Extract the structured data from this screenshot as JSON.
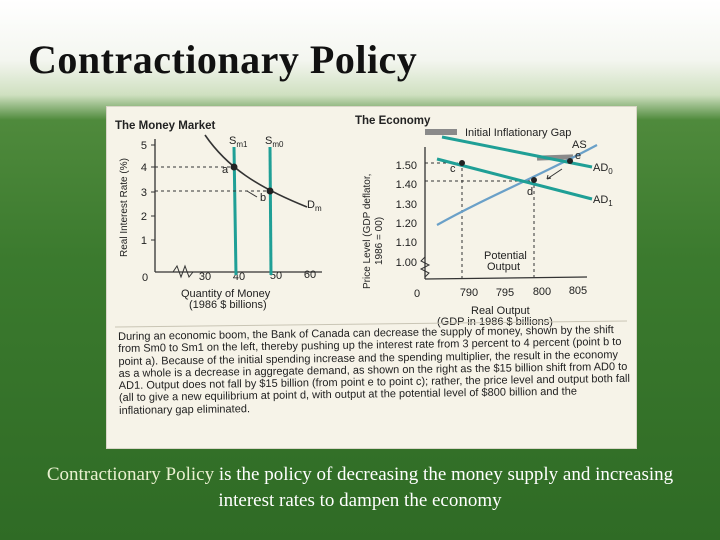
{
  "slide": {
    "title": "Contractionary Policy"
  },
  "colors": {
    "curve_green": "#1f9f96",
    "curve_dark": "#333333",
    "curve_blue": "#6aa0c8",
    "gap": "#8a8a8a"
  },
  "money_market": {
    "title": "The Money Market",
    "y_axis_label": "Real Interest Rate (%)",
    "y_ticks": [
      "5",
      "4",
      "3",
      "2",
      "1"
    ],
    "x_ticks": [
      "0",
      "30",
      "40",
      "50",
      "60"
    ],
    "x_axis_label_1": "Quantity of Money",
    "x_axis_label_2": "(1986 $ billions)",
    "supply_new": "S",
    "supply_new_sub": "m1",
    "supply_old": "S",
    "supply_old_sub": "m0",
    "demand": "D",
    "demand_sub": "m",
    "point_a": "a",
    "point_b": "b"
  },
  "economy": {
    "title": "The Economy",
    "legend": "Initial Inflationary Gap",
    "y_axis_label_1": "Price Level (GDP deflator,",
    "y_axis_label_2": "1986 = 00)",
    "y_ticks": [
      "1.50",
      "1.40",
      "1.30",
      "1.20",
      "1.10",
      "1.00"
    ],
    "x_ticks": [
      "0",
      "790",
      "795",
      "800",
      "805"
    ],
    "x_axis_label_1": "Real Output",
    "x_axis_label_2": "(GDP in 1986 $ billions)",
    "as_label": "AS",
    "ad0_label": "AD",
    "ad0_sub": "0",
    "ad1_label": "AD",
    "ad1_sub": "1",
    "potential_1": "Potential",
    "potential_2": "Output",
    "point_c": "c",
    "point_d": "d",
    "point_e": "e"
  },
  "caption": {
    "text": "During an economic boom, the Bank of Canada can decrease the supply of money, shown by the shift from Sm0 to Sm1 on the left, thereby pushing up the interest rate from 3 percent to 4 percent (point b to point a). Because of the initial spending increase and the spending multiplier, the result in the economy as a whole is a decrease in aggregate demand, as shown on the right as the $15 billion shift from AD0 to AD1. Output does not fall by $15 billion (from point e to point c); rather, the price level and output both fall (all to give a new equilibrium at point d, with output at the potential level of $800 billion and the inflationary gap eliminated."
  },
  "description": {
    "term": "Contractionary Policy",
    "rest": " is the policy of decreasing the money supply and increasing interest rates to dampen the economy"
  }
}
